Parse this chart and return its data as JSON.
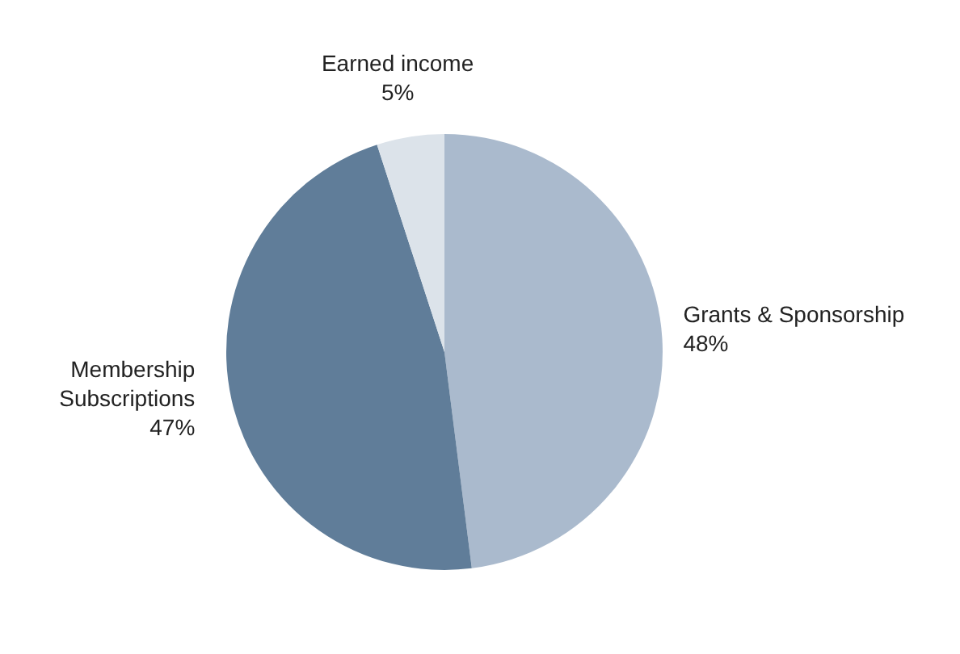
{
  "chart_data": {
    "type": "pie",
    "categories": [
      "Grants & Sponsorship",
      "Membership Subscriptions",
      "Earned income"
    ],
    "values": [
      48,
      47,
      5
    ],
    "colors": [
      "#aabacd",
      "#607d99",
      "#dce3ea"
    ],
    "value_labels": [
      "48%",
      "47%",
      "5%"
    ]
  }
}
